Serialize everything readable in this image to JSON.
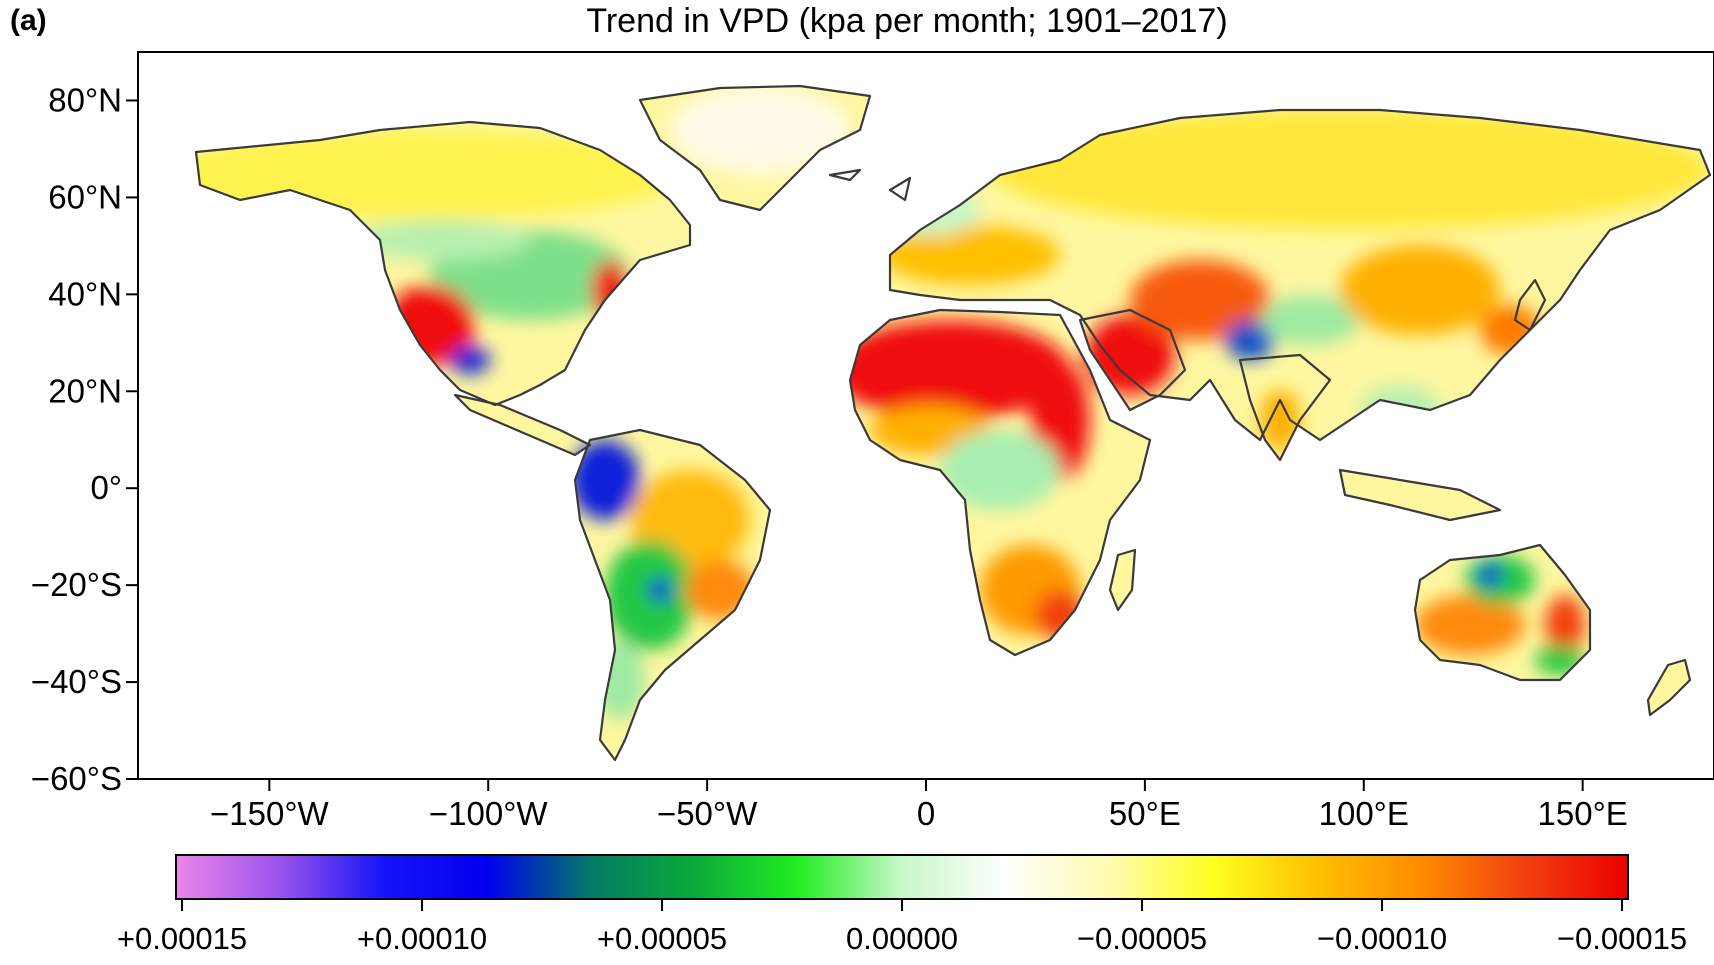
{
  "panel_label": "(a)",
  "title": "Trend in VPD (kpa per month; 1901–2017)",
  "map": {
    "projection": "equirectangular",
    "lon_range": [
      -180,
      180
    ],
    "lat_range": [
      -60,
      90
    ],
    "y_ticks": [
      {
        "value": 80,
        "label": "80°N"
      },
      {
        "value": 60,
        "label": "60°N"
      },
      {
        "value": 40,
        "label": "40°N"
      },
      {
        "value": 20,
        "label": "20°N"
      },
      {
        "value": 0,
        "label": "0°"
      },
      {
        "value": -20,
        "label": "−20°S"
      },
      {
        "value": -40,
        "label": "−40°S"
      },
      {
        "value": -60,
        "label": "−60°S"
      }
    ],
    "x_ticks": [
      {
        "value": -150,
        "label": "−150°W"
      },
      {
        "value": -100,
        "label": "−100°W"
      },
      {
        "value": -50,
        "label": "−50°W"
      },
      {
        "value": 0,
        "label": "0"
      },
      {
        "value": 50,
        "label": "50°E"
      },
      {
        "value": 100,
        "label": "100°E"
      },
      {
        "value": 150,
        "label": "150°E"
      }
    ],
    "regions": [
      {
        "name": "greenland",
        "value": 0.0,
        "color": "#fffbe6"
      },
      {
        "name": "alaska-canada",
        "value": -5e-05,
        "color": "#fff34d"
      },
      {
        "name": "us-mexico-southwest",
        "value": -0.00015,
        "color": "#f01010"
      },
      {
        "name": "eastern-us",
        "value": 4e-05,
        "color": "#7ee08a"
      },
      {
        "name": "sahara",
        "value": -0.00015,
        "color": "#f01010"
      },
      {
        "name": "arabia",
        "value": -0.00015,
        "color": "#f01010"
      },
      {
        "name": "central-africa",
        "value": 3e-05,
        "color": "#a8efb0"
      },
      {
        "name": "southern-africa",
        "value": -0.0001,
        "color": "#ff9a00"
      },
      {
        "name": "amazon-northwest",
        "value": 0.0001,
        "color": "#0a23d9"
      },
      {
        "name": "brazil-east",
        "value": -8e-05,
        "color": "#ffbb10"
      },
      {
        "name": "siberia",
        "value": -5e-05,
        "color": "#ffe24a"
      },
      {
        "name": "central-asia",
        "value": -0.00012,
        "color": "#f85a10"
      },
      {
        "name": "australia-north",
        "value": 0.0001,
        "color": "#0a4fc9"
      },
      {
        "name": "australia-west",
        "value": -0.0001,
        "color": "#ff8a10"
      }
    ]
  },
  "colorbar": {
    "stops": [
      "#ea86ea",
      "#9b53ec",
      "#1515f7",
      "#0000f0",
      "#047a66",
      "#0aaa3a",
      "#22ee22",
      "#c8f8c8",
      "#ffffff",
      "#fffbb0",
      "#ffff20",
      "#ffc000",
      "#ff8c00",
      "#f24010",
      "#ec0000"
    ],
    "ticks": [
      {
        "value": 0.00015,
        "label": "+0.00015"
      },
      {
        "value": 0.0001,
        "label": "+0.00010"
      },
      {
        "value": 5e-05,
        "label": "+0.00005"
      },
      {
        "value": 0.0,
        "label": "0.00000"
      },
      {
        "value": -5e-05,
        "label": "−0.00005"
      },
      {
        "value": -0.0001,
        "label": "−0.00010"
      },
      {
        "value": -0.00015,
        "label": "−0.00015"
      }
    ]
  }
}
